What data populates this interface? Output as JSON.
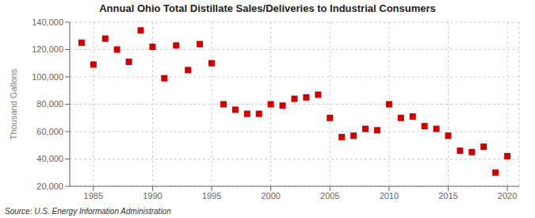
{
  "chart_data": {
    "type": "scatter",
    "title": "Annual Ohio Total Distillate Sales/Deliveries to Industrial Consumers",
    "ylabel": "Thousand Gallons",
    "annotation": "Source: U.S. Energy Information Administration",
    "x": [
      1984,
      1985,
      1986,
      1987,
      1988,
      1989,
      1990,
      1991,
      1992,
      1993,
      1994,
      1995,
      1996,
      1997,
      1998,
      1999,
      2000,
      2001,
      2002,
      2003,
      2004,
      2005,
      2006,
      2007,
      2008,
      2009,
      2010,
      2011,
      2012,
      2013,
      2014,
      2015,
      2016,
      2017,
      2018,
      2019,
      2020
    ],
    "values": [
      125000,
      109000,
      128000,
      120000,
      111000,
      134000,
      122000,
      99000,
      123000,
      105000,
      124000,
      110000,
      80000,
      76000,
      73000,
      73000,
      80000,
      79000,
      84000,
      85000,
      87000,
      70000,
      56000,
      57000,
      62000,
      61000,
      80000,
      70000,
      71000,
      64000,
      62000,
      57000,
      46000,
      45000,
      49000,
      30000,
      42000
    ],
    "color": "#cc0000",
    "marker": "square",
    "xlim": [
      1983,
      2021
    ],
    "xticks": [
      1985,
      1990,
      1995,
      2000,
      2005,
      2010,
      2015,
      2020
    ],
    "ylim": [
      20000,
      140000
    ],
    "yticks": [
      {
        "value": 20000,
        "label": "20,000"
      },
      {
        "value": 40000,
        "label": "40,000"
      },
      {
        "value": 60000,
        "label": "60,000"
      },
      {
        "value": 80000,
        "label": "80,000"
      },
      {
        "value": 100000,
        "label": "100,000"
      },
      {
        "value": 120000,
        "label": "120,000"
      },
      {
        "value": 140000,
        "label": "140,000"
      }
    ],
    "grid": true
  }
}
